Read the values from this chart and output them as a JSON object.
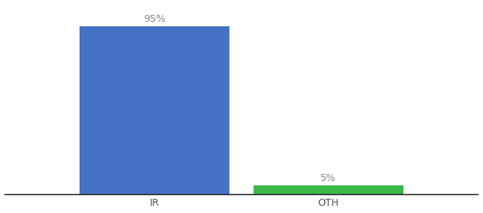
{
  "categories": [
    "IR",
    "OTH"
  ],
  "values": [
    95,
    5
  ],
  "bar_colors": [
    "#4472c4",
    "#3cb84a"
  ],
  "label_texts": [
    "95%",
    "5%"
  ],
  "background_color": "#ffffff",
  "ylim": [
    0,
    107
  ],
  "xlim": [
    -0.1,
    1.1
  ],
  "bar_width": 0.38,
  "x_positions": [
    0.28,
    0.72
  ],
  "label_fontsize": 10,
  "tick_fontsize": 10,
  "label_color": "#888888",
  "tick_color": "#555555",
  "spine_color": "#222222"
}
